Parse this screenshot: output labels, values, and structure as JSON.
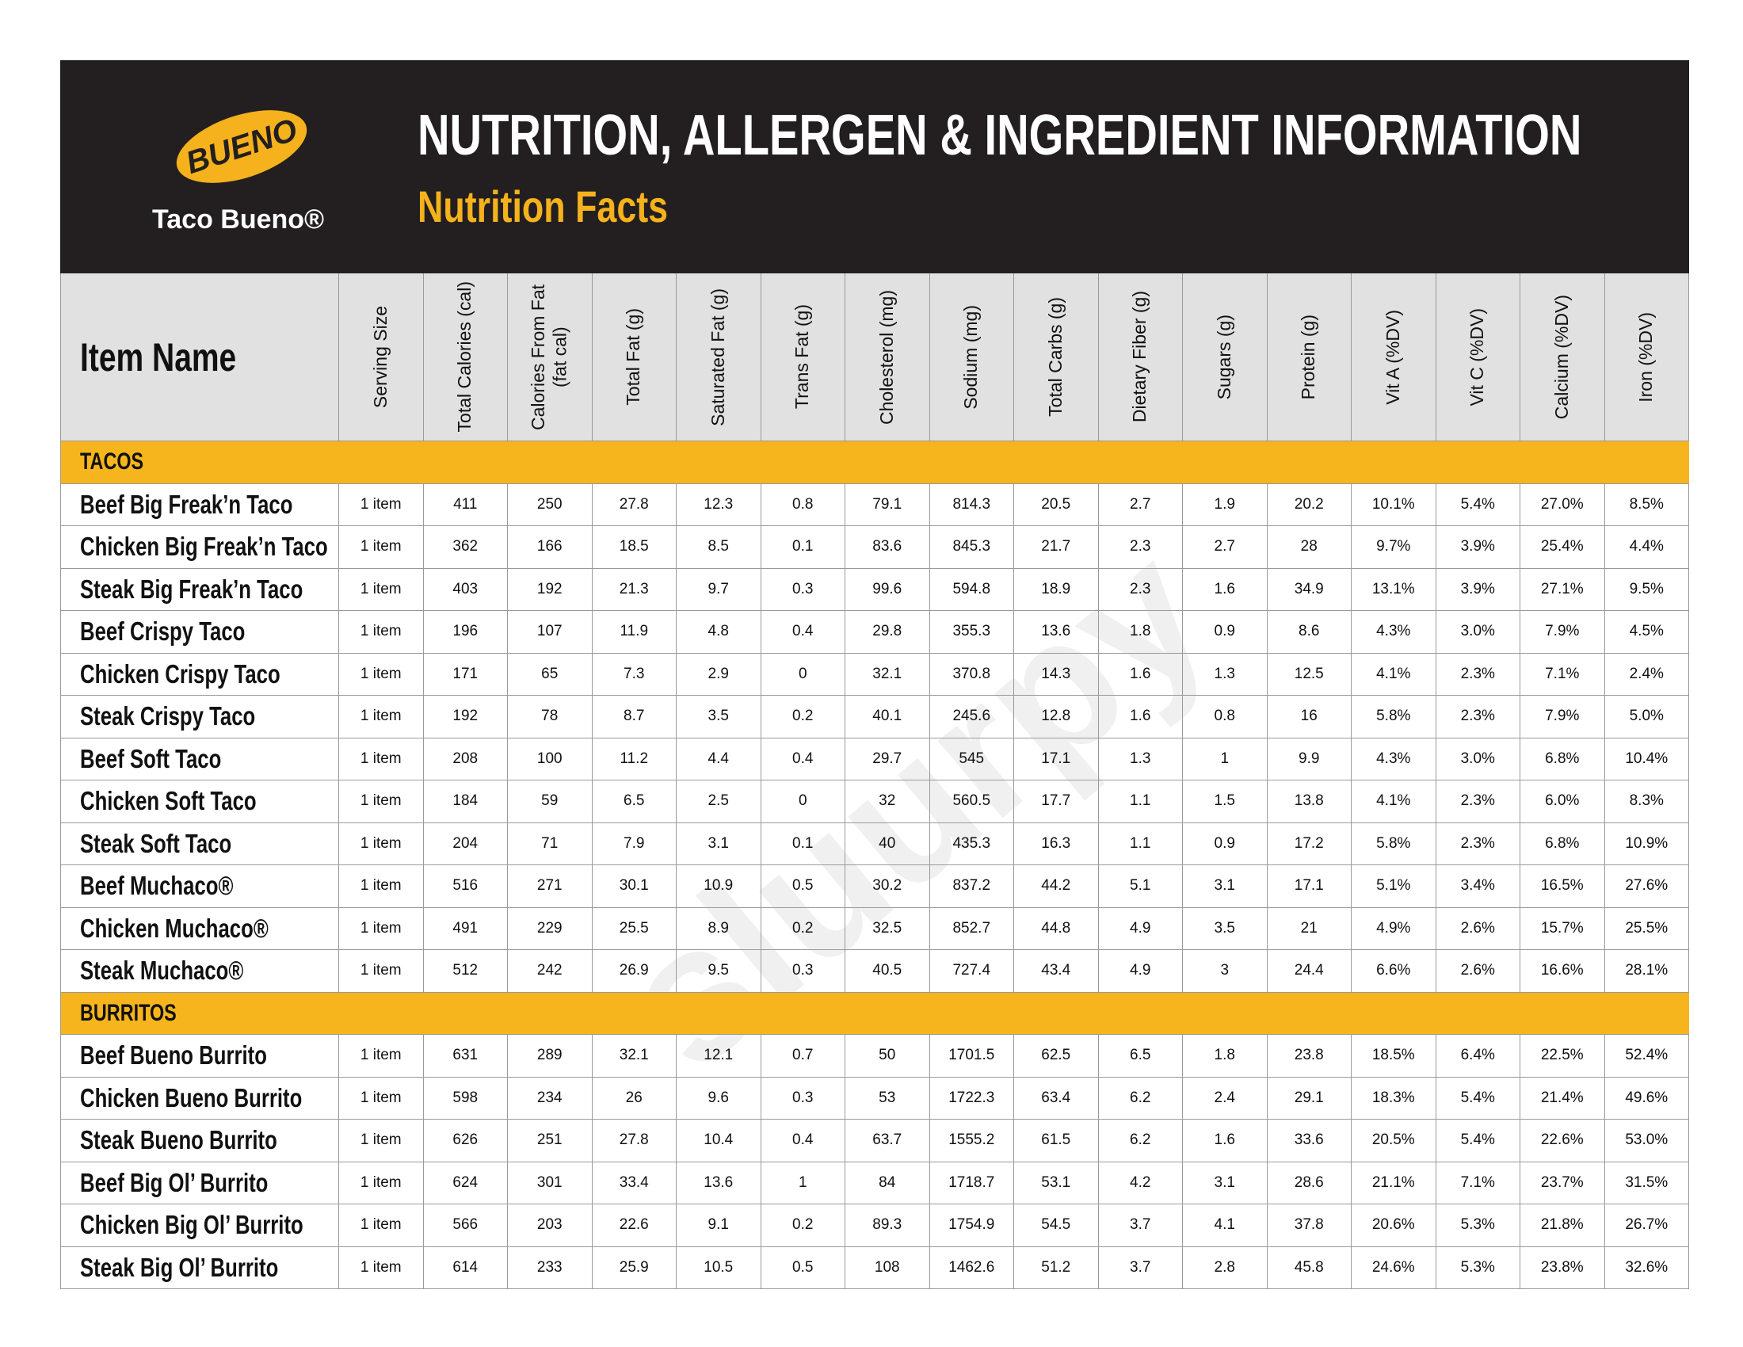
{
  "header": {
    "logo": "BUENO",
    "brand": "Taco Bueno®",
    "title": "NUTRITION, ALLERGEN & INGREDIENT INFORMATION",
    "subtitle": "Nutrition Facts"
  },
  "watermark": "sluurpy",
  "table": {
    "columns": [
      "Item Name",
      "Serving Size",
      "Total Calories (cal)",
      "Calories From Fat (fat cal)",
      "Total Fat (g)",
      "Saturated Fat (g)",
      "Trans Fat (g)",
      "Cholesterol (mg)",
      "Sodium (mg)",
      "Total Carbs (g)",
      "Dietary Fiber (g)",
      "Sugars (g)",
      "Protein (g)",
      "Vit A (%DV)",
      "Vit C (%DV)",
      "Calcium (%DV)",
      "Iron (%DV)"
    ],
    "sections": [
      {
        "title": "TACOS",
        "rows": [
          {
            "name": "Beef Big Freak’n Taco",
            "values": [
              "1 item",
              "411",
              "250",
              "27.8",
              "12.3",
              "0.8",
              "79.1",
              "814.3",
              "20.5",
              "2.7",
              "1.9",
              "20.2",
              "10.1%",
              "5.4%",
              "27.0%",
              "8.5%"
            ]
          },
          {
            "name": "Chicken Big Freak’n Taco",
            "values": [
              "1 item",
              "362",
              "166",
              "18.5",
              "8.5",
              "0.1",
              "83.6",
              "845.3",
              "21.7",
              "2.3",
              "2.7",
              "28",
              "9.7%",
              "3.9%",
              "25.4%",
              "4.4%"
            ]
          },
          {
            "name": "Steak Big Freak’n Taco",
            "values": [
              "1 item",
              "403",
              "192",
              "21.3",
              "9.7",
              "0.3",
              "99.6",
              "594.8",
              "18.9",
              "2.3",
              "1.6",
              "34.9",
              "13.1%",
              "3.9%",
              "27.1%",
              "9.5%"
            ]
          },
          {
            "name": "Beef Crispy Taco",
            "values": [
              "1 item",
              "196",
              "107",
              "11.9",
              "4.8",
              "0.4",
              "29.8",
              "355.3",
              "13.6",
              "1.8",
              "0.9",
              "8.6",
              "4.3%",
              "3.0%",
              "7.9%",
              "4.5%"
            ]
          },
          {
            "name": "Chicken Crispy Taco",
            "values": [
              "1 item",
              "171",
              "65",
              "7.3",
              "2.9",
              "0",
              "32.1",
              "370.8",
              "14.3",
              "1.6",
              "1.3",
              "12.5",
              "4.1%",
              "2.3%",
              "7.1%",
              "2.4%"
            ]
          },
          {
            "name": "Steak Crispy Taco",
            "values": [
              "1 item",
              "192",
              "78",
              "8.7",
              "3.5",
              "0.2",
              "40.1",
              "245.6",
              "12.8",
              "1.6",
              "0.8",
              "16",
              "5.8%",
              "2.3%",
              "7.9%",
              "5.0%"
            ]
          },
          {
            "name": "Beef Soft Taco",
            "values": [
              "1 item",
              "208",
              "100",
              "11.2",
              "4.4",
              "0.4",
              "29.7",
              "545",
              "17.1",
              "1.3",
              "1",
              "9.9",
              "4.3%",
              "3.0%",
              "6.8%",
              "10.4%"
            ]
          },
          {
            "name": "Chicken Soft Taco",
            "values": [
              "1 item",
              "184",
              "59",
              "6.5",
              "2.5",
              "0",
              "32",
              "560.5",
              "17.7",
              "1.1",
              "1.5",
              "13.8",
              "4.1%",
              "2.3%",
              "6.0%",
              "8.3%"
            ]
          },
          {
            "name": "Steak Soft Taco",
            "values": [
              "1 item",
              "204",
              "71",
              "7.9",
              "3.1",
              "0.1",
              "40",
              "435.3",
              "16.3",
              "1.1",
              "0.9",
              "17.2",
              "5.8%",
              "2.3%",
              "6.8%",
              "10.9%"
            ]
          },
          {
            "name": "Beef Muchaco®",
            "values": [
              "1 item",
              "516",
              "271",
              "30.1",
              "10.9",
              "0.5",
              "30.2",
              "837.2",
              "44.2",
              "5.1",
              "3.1",
              "17.1",
              "5.1%",
              "3.4%",
              "16.5%",
              "27.6%"
            ]
          },
          {
            "name": "Chicken Muchaco®",
            "values": [
              "1 item",
              "491",
              "229",
              "25.5",
              "8.9",
              "0.2",
              "32.5",
              "852.7",
              "44.8",
              "4.9",
              "3.5",
              "21",
              "4.9%",
              "2.6%",
              "15.7%",
              "25.5%"
            ]
          },
          {
            "name": "Steak Muchaco®",
            "values": [
              "1 item",
              "512",
              "242",
              "26.9",
              "9.5",
              "0.3",
              "40.5",
              "727.4",
              "43.4",
              "4.9",
              "3",
              "24.4",
              "6.6%",
              "2.6%",
              "16.6%",
              "28.1%"
            ]
          }
        ]
      },
      {
        "title": "BURRITOS",
        "rows": [
          {
            "name": "Beef Bueno Burrito",
            "values": [
              "1 item",
              "631",
              "289",
              "32.1",
              "12.1",
              "0.7",
              "50",
              "1701.5",
              "62.5",
              "6.5",
              "1.8",
              "23.8",
              "18.5%",
              "6.4%",
              "22.5%",
              "52.4%"
            ]
          },
          {
            "name": "Chicken Bueno Burrito",
            "values": [
              "1 item",
              "598",
              "234",
              "26",
              "9.6",
              "0.3",
              "53",
              "1722.3",
              "63.4",
              "6.2",
              "2.4",
              "29.1",
              "18.3%",
              "5.4%",
              "21.4%",
              "49.6%"
            ]
          },
          {
            "name": "Steak Bueno Burrito",
            "values": [
              "1 item",
              "626",
              "251",
              "27.8",
              "10.4",
              "0.4",
              "63.7",
              "1555.2",
              "61.5",
              "6.2",
              "1.6",
              "33.6",
              "20.5%",
              "5.4%",
              "22.6%",
              "53.0%"
            ]
          },
          {
            "name": "Beef Big Ol’ Burrito",
            "values": [
              "1 item",
              "624",
              "301",
              "33.4",
              "13.6",
              "1",
              "84",
              "1718.7",
              "53.1",
              "4.2",
              "3.1",
              "28.6",
              "21.1%",
              "7.1%",
              "23.7%",
              "31.5%"
            ]
          },
          {
            "name": "Chicken Big Ol’ Burrito",
            "values": [
              "1 item",
              "566",
              "203",
              "22.6",
              "9.1",
              "0.2",
              "89.3",
              "1754.9",
              "54.5",
              "3.7",
              "4.1",
              "37.8",
              "20.6%",
              "5.3%",
              "21.8%",
              "26.7%"
            ]
          },
          {
            "name": "Steak Big Ol’ Burrito",
            "values": [
              "1 item",
              "614",
              "233",
              "25.9",
              "10.5",
              "0.5",
              "108",
              "1462.6",
              "51.2",
              "3.7",
              "2.8",
              "45.8",
              "24.6%",
              "5.3%",
              "23.8%",
              "32.6%"
            ]
          }
        ]
      }
    ]
  }
}
